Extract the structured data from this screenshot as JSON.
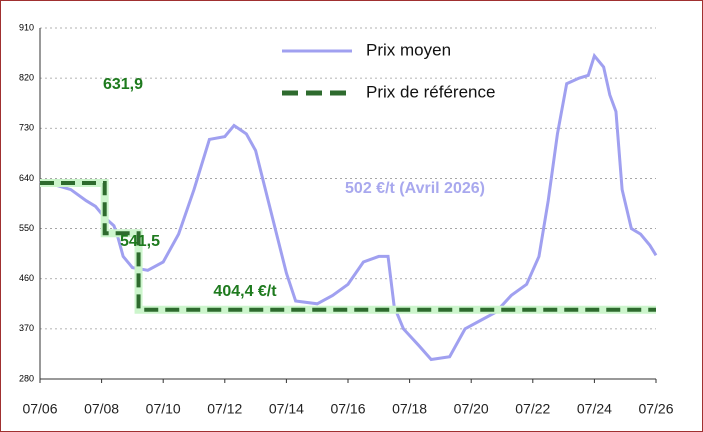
{
  "chart_data": {
    "type": "line",
    "xlim": [
      2006.5,
      2026.5
    ],
    "xticks": [
      {
        "value": 2006.5,
        "label": "07/06"
      },
      {
        "value": 2008.5,
        "label": "07/08"
      },
      {
        "value": 2010.5,
        "label": "07/10"
      },
      {
        "value": 2012.5,
        "label": "07/12"
      },
      {
        "value": 2014.5,
        "label": "07/14"
      },
      {
        "value": 2016.5,
        "label": "07/16"
      },
      {
        "value": 2018.5,
        "label": "07/18"
      },
      {
        "value": 2020.5,
        "label": "07/20"
      },
      {
        "value": 2022.5,
        "label": "07/22"
      },
      {
        "value": 2024.5,
        "label": "07/24"
      },
      {
        "value": 2026.5,
        "label": "07/26"
      }
    ],
    "ylim": [
      280,
      910
    ],
    "yticks": [
      280,
      370,
      460,
      550,
      640,
      730,
      820,
      910
    ],
    "grid": true,
    "series": [
      {
        "name": "Prix moyen",
        "color": "#a0a0f0",
        "x": [
          2006.5,
          2007.0,
          2007.5,
          2008.0,
          2008.3,
          2008.6,
          2008.9,
          2009.0,
          2009.2,
          2009.5,
          2010.0,
          2010.5,
          2011.0,
          2011.5,
          2012.0,
          2012.5,
          2012.8,
          2013.2,
          2013.5,
          2014.0,
          2014.5,
          2014.8,
          2015.5,
          2016.0,
          2016.5,
          2017.0,
          2017.5,
          2017.8,
          2018.0,
          2018.3,
          2018.8,
          2019.2,
          2019.8,
          2020.3,
          2020.8,
          2021.3,
          2021.8,
          2022.3,
          2022.7,
          2023.0,
          2023.3,
          2023.6,
          2024.0,
          2024.3,
          2024.5,
          2024.8,
          2025.0,
          2025.2,
          2025.4,
          2025.7,
          2026.0,
          2026.3,
          2026.5
        ],
        "values": [
          635,
          628,
          620,
          600,
          590,
          570,
          555,
          540,
          500,
          480,
          475,
          490,
          540,
          620,
          710,
          715,
          735,
          720,
          690,
          580,
          470,
          420,
          415,
          430,
          450,
          490,
          500,
          500,
          410,
          370,
          340,
          315,
          320,
          370,
          385,
          400,
          430,
          450,
          500,
          600,
          720,
          810,
          820,
          825,
          860,
          840,
          790,
          760,
          620,
          550,
          540,
          520,
          502
        ]
      },
      {
        "name": "Prix de référence",
        "color": "#2e6b2e",
        "x": [
          2006.5,
          2008.6,
          2008.6,
          2009.7,
          2009.7,
          2026.5
        ],
        "values": [
          631.9,
          631.9,
          541.5,
          541.5,
          404.4,
          404.4
        ],
        "value_labels": [
          "631,9",
          null,
          "541,5",
          null,
          "404,4 €/t",
          null
        ]
      }
    ],
    "annotations": [
      "502 €/t (Avril 2026)"
    ]
  }
}
